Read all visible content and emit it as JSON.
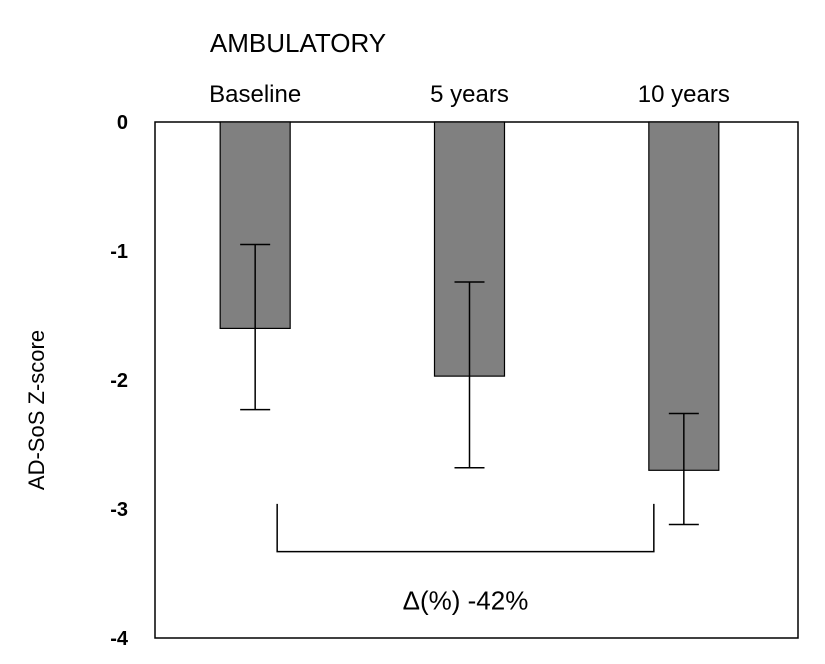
{
  "chart_data": {
    "type": "bar",
    "title": "AMBULATORY",
    "xlabel": "",
    "ylabel": "AD-SoS Z-score",
    "categories": [
      "Baseline",
      "5 years",
      "10 years"
    ],
    "values": [
      -1.6,
      -1.97,
      -2.7
    ],
    "error_low": [
      -2.23,
      -2.68,
      -3.12
    ],
    "error_high": [
      -0.95,
      -1.24,
      -2.26
    ],
    "ylim": [
      -4,
      0
    ],
    "yticks": [
      0,
      -1,
      -2,
      -3,
      -4
    ],
    "ytick_labels": [
      "0",
      "-1",
      "-2",
      "-3",
      "-4"
    ],
    "x_axis_position": "top",
    "grid": false,
    "bar_color": "#808080",
    "annotation": {
      "label": "Δ(%) -42%",
      "from_category": "Baseline",
      "to_category": "10 years"
    }
  }
}
